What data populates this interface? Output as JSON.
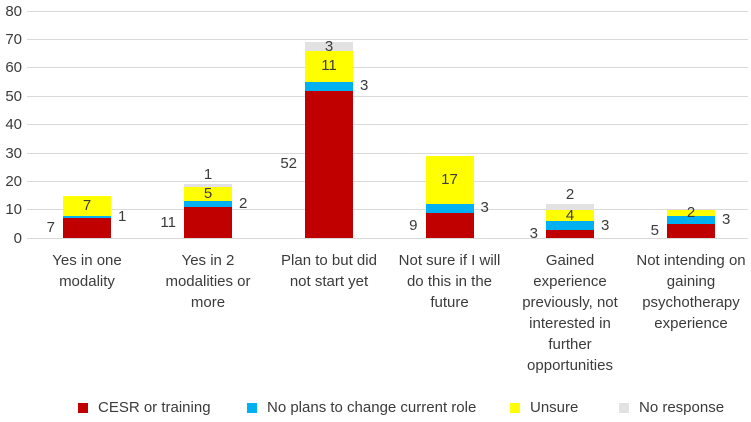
{
  "chart_data": {
    "type": "bar",
    "stacked": true,
    "title": "",
    "categories": [
      "Yes in one modality",
      "Yes in 2 modalities or more",
      "Plan to but did not start yet",
      "Not sure if I will do this in the future",
      "Gained experience previously, not interested in further opportunities",
      "Not intending on gaining psychotherapy experience"
    ],
    "series": [
      {
        "name": "CESR or training",
        "color": "#c00000",
        "values": [
          7,
          11,
          52,
          9,
          3,
          5
        ],
        "label_position": "left"
      },
      {
        "name": "No plans to change current role",
        "color": "#00b0f0",
        "values": [
          1,
          2,
          3,
          3,
          3,
          3
        ],
        "label_position": "right"
      },
      {
        "name": "Unsure",
        "color": "#ffff00",
        "values": [
          7,
          5,
          11,
          17,
          4,
          2
        ],
        "label_position": "inside"
      },
      {
        "name": "No response",
        "color": "#e2e2e2",
        "values": [
          0,
          1,
          3,
          0,
          2,
          0
        ],
        "label_position": "above"
      }
    ],
    "ylim": [
      0,
      80
    ],
    "ytick_step": 10,
    "ytick_labels": [
      "0",
      "10",
      "20",
      "30",
      "40",
      "50",
      "60",
      "70",
      "80"
    ],
    "grid": true,
    "gridline_color": "#d9d9d9",
    "text_color": "#3b3b3b",
    "background": "#ffffff",
    "legend_position": "bottom",
    "data_labels_shown": true
  }
}
